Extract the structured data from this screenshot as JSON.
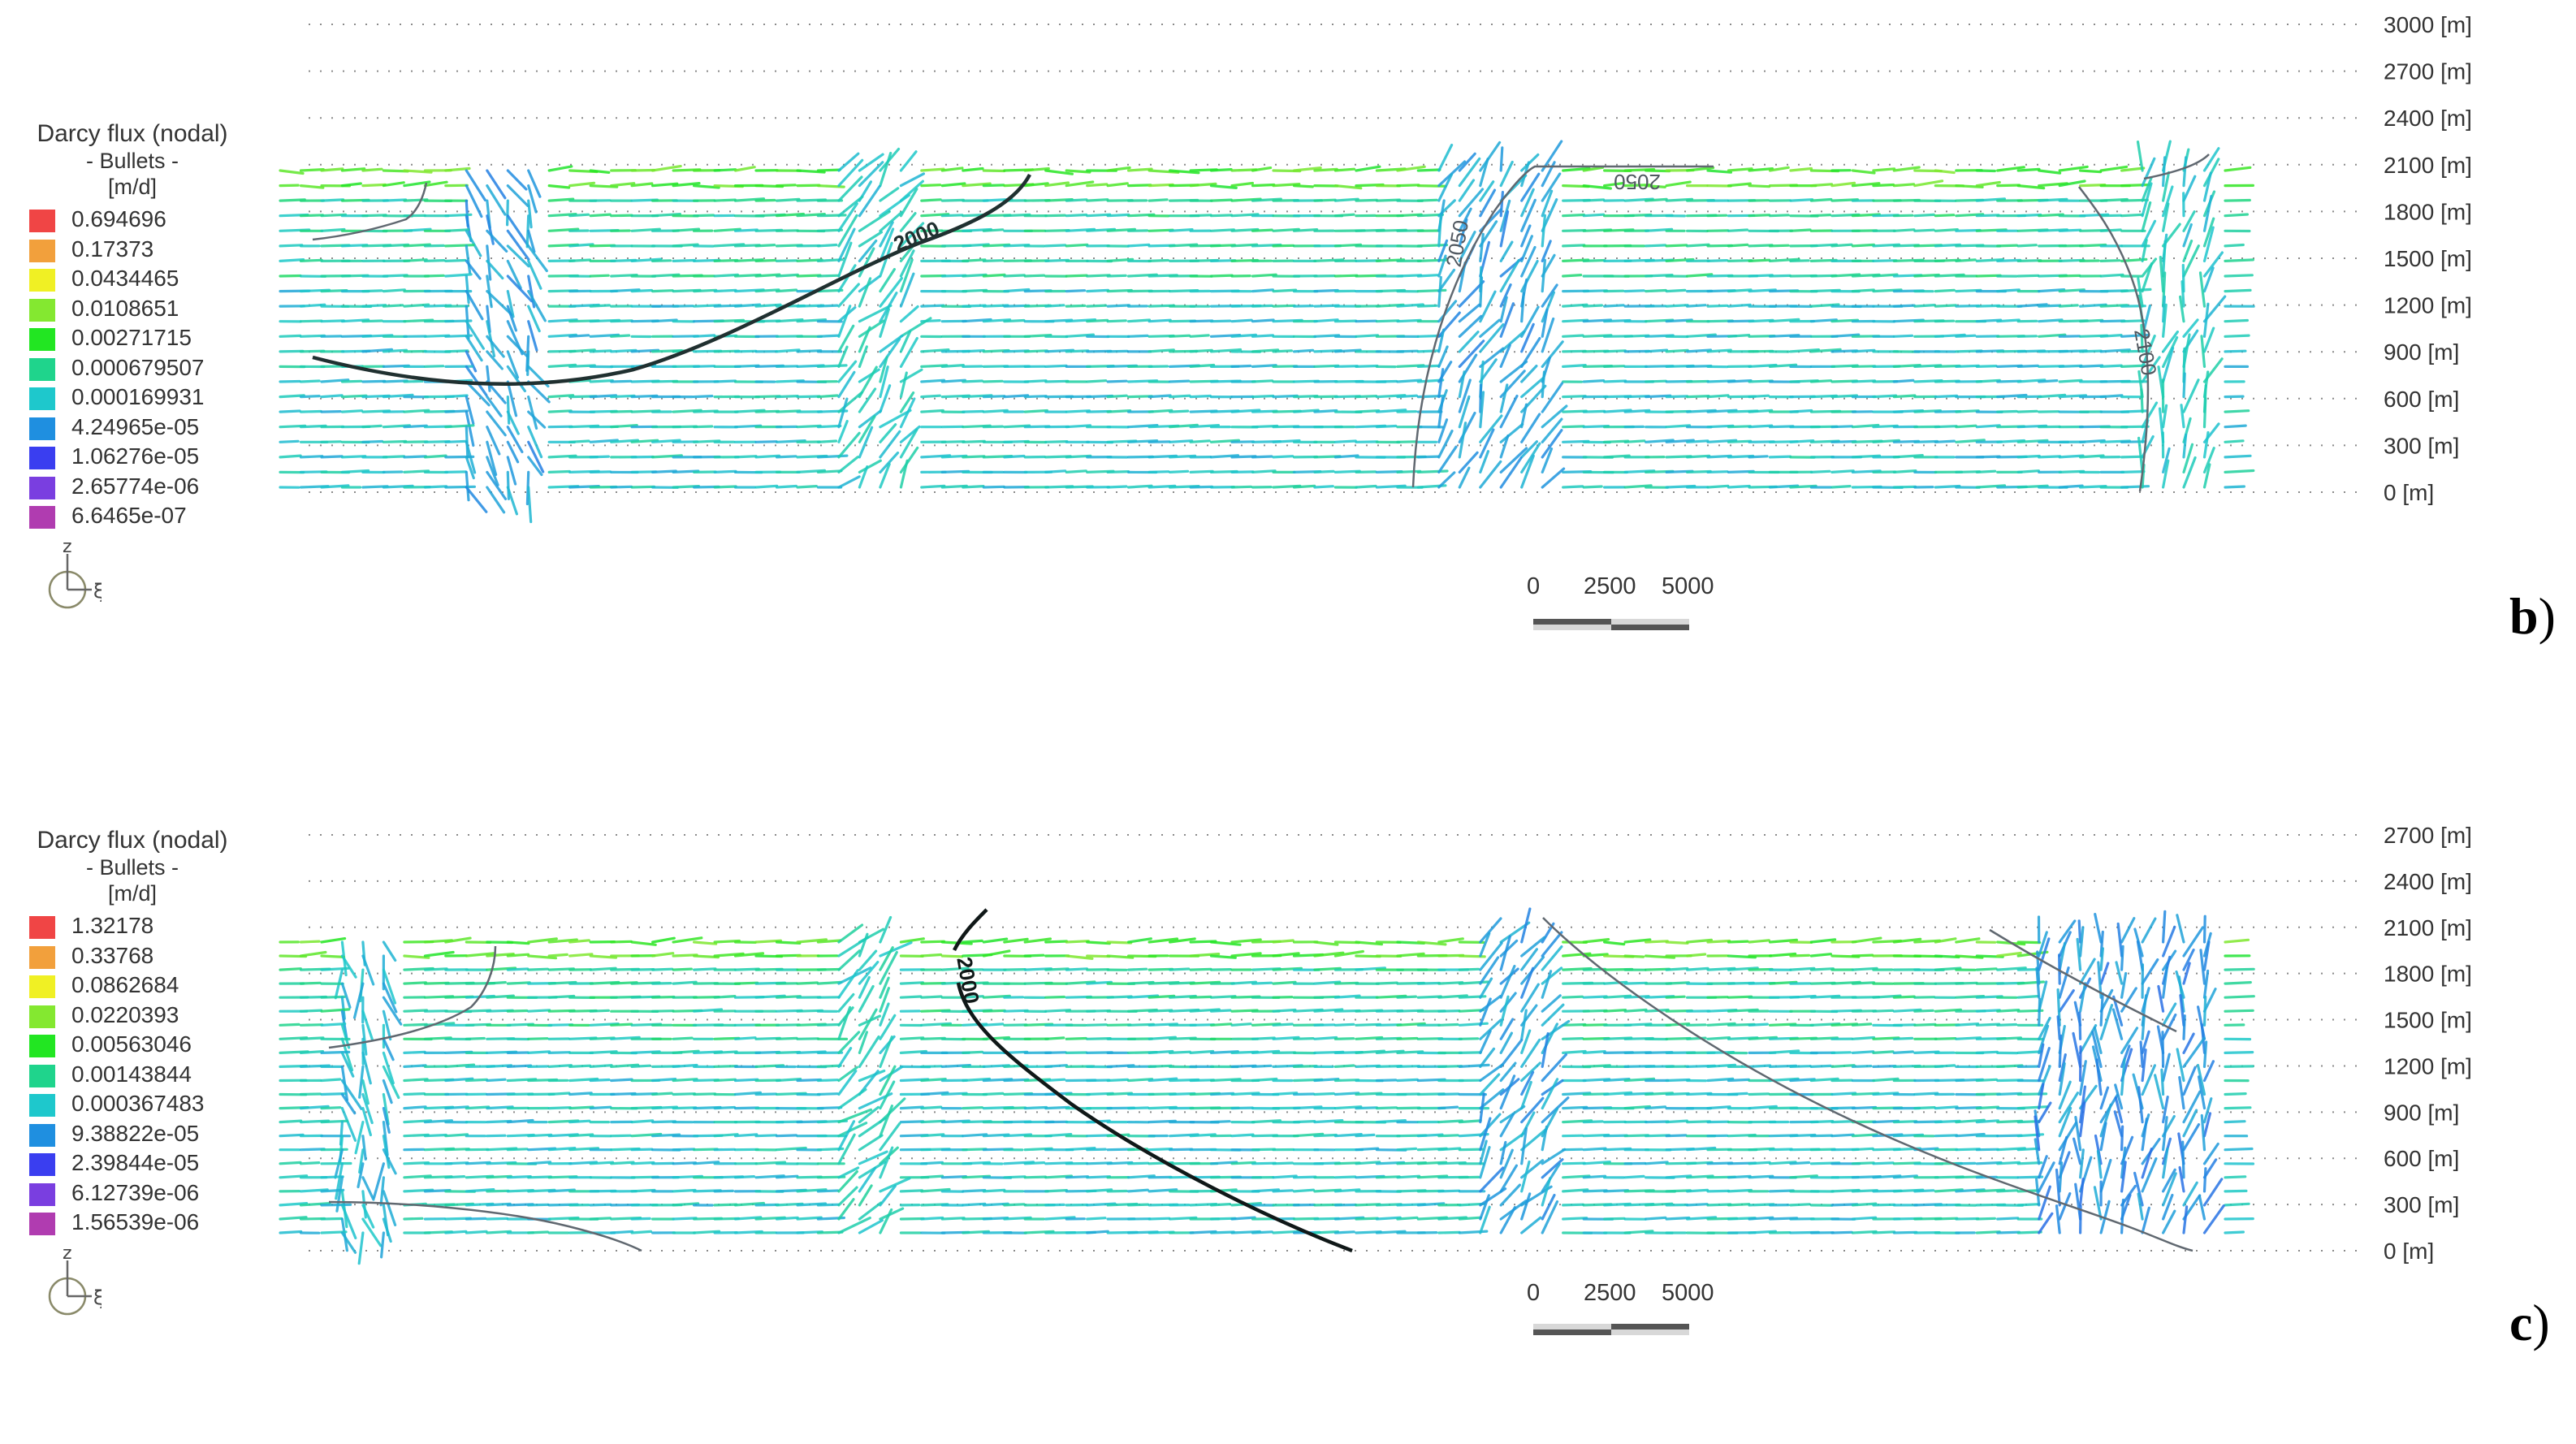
{
  "panels": [
    {
      "id": "b",
      "letter": "b",
      "letter_suffix": ")",
      "legend": {
        "title": "Darcy flux (nodal)",
        "subtitle": "- Bullets -",
        "unit": "[m/d]",
        "entries": [
          {
            "value": "0.694696",
            "color": "#f04545"
          },
          {
            "value": "0.17373",
            "color": "#f2a03c"
          },
          {
            "value": "0.0434465",
            "color": "#f0f024"
          },
          {
            "value": "0.0108651",
            "color": "#84e830"
          },
          {
            "value": "0.00271715",
            "color": "#22e622"
          },
          {
            "value": "0.000679507",
            "color": "#1fd48c"
          },
          {
            "value": "0.000169931",
            "color": "#1ec8cc"
          },
          {
            "value": "4.24965e-05",
            "color": "#1f8fe0"
          },
          {
            "value": "1.06276e-05",
            "color": "#3a3ef0"
          },
          {
            "value": "2.65774e-06",
            "color": "#7a3ee0"
          },
          {
            "value": "6.6465e-07",
            "color": "#b03cb0"
          }
        ]
      },
      "axis_icon": {
        "up": "z",
        "right": "ξ"
      },
      "elevation_ticks": [
        "3000 [m]",
        "2700 [m]",
        "2400 [m]",
        "2100 [m]",
        "1800 [m]",
        "1500 [m]",
        "1200 [m]",
        "900 [m]",
        "600 [m]",
        "300 [m]",
        "0 [m]"
      ],
      "contour_labels": [
        "2000",
        "2050",
        "2050",
        "2100"
      ],
      "scale_bar": {
        "labels": [
          "0",
          "2500",
          "5000"
        ]
      }
    },
    {
      "id": "c",
      "letter": "c",
      "letter_suffix": ")",
      "legend": {
        "title": "Darcy flux (nodal)",
        "subtitle": "- Bullets -",
        "unit": "[m/d]",
        "entries": [
          {
            "value": "1.32178",
            "color": "#f04545"
          },
          {
            "value": "0.33768",
            "color": "#f2a03c"
          },
          {
            "value": "0.0862684",
            "color": "#f0f024"
          },
          {
            "value": "0.0220393",
            "color": "#84e830"
          },
          {
            "value": "0.00563046",
            "color": "#22e622"
          },
          {
            "value": "0.00143844",
            "color": "#1fd48c"
          },
          {
            "value": "0.000367483",
            "color": "#1ec8cc"
          },
          {
            "value": "9.38822e-05",
            "color": "#1f8fe0"
          },
          {
            "value": "2.39844e-05",
            "color": "#3a3ef0"
          },
          {
            "value": "6.12739e-06",
            "color": "#7a3ee0"
          },
          {
            "value": "1.56539e-06",
            "color": "#b03cb0"
          }
        ]
      },
      "axis_icon": {
        "up": "z",
        "right": "ξ"
      },
      "elevation_ticks": [
        "2700 [m]",
        "2400 [m]",
        "2100 [m]",
        "1800 [m]",
        "1500 [m]",
        "1200 [m]",
        "900 [m]",
        "600 [m]",
        "300 [m]",
        "0 [m]"
      ],
      "contour_labels": [
        "2000"
      ],
      "scale_bar": {
        "labels": [
          "0",
          "2500",
          "5000"
        ]
      }
    }
  ]
}
